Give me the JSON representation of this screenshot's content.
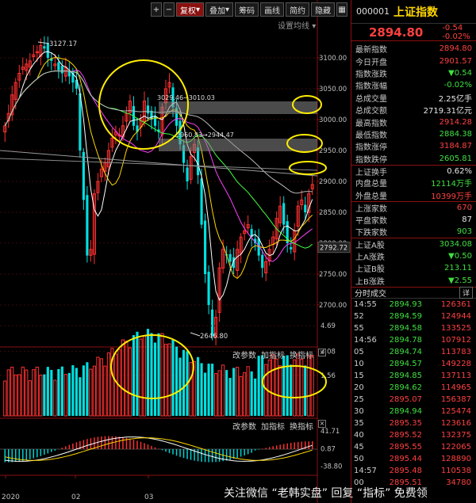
{
  "toolbar": {
    "plus": "+",
    "minus": "−",
    "fq": "复权",
    "overlay": "叠加",
    "chip": "筹码",
    "draw": "画线",
    "brief": "简约",
    "hide": "隐藏",
    "grid_icon": "▦",
    "more": "▾"
  },
  "settings_line": "设置均线",
  "price_axis": [
    "3100.00",
    "3050.00",
    "3000.00",
    "2950.00",
    "2900.00",
    "2850.00",
    "2800.00",
    "2750.00",
    "2700.00"
  ],
  "current_axis_value": "2792.72",
  "annotations": {
    "high": "3127.17",
    "low": "2646.80",
    "l1": "3029.46→3010.03",
    "l2": "2960.83→2944.47"
  },
  "vol_axis": [
    "4.69",
    "3.08",
    "1.56"
  ],
  "macd_axis": [
    "41.71",
    "0.87",
    "-38.80"
  ],
  "x_labels": [
    "2020",
    "02",
    "03"
  ],
  "sub_buttons": {
    "params": "改参数",
    "add": "加指标",
    "switch": "换指标",
    "close": "×"
  },
  "panel": {
    "code": "000001",
    "name": "上证指数",
    "price": "2894.80",
    "change": "-0.54",
    "change_pct": "-0.02%",
    "rows": [
      {
        "label": "最新指数",
        "value": "2894.80",
        "cls": "red"
      },
      {
        "label": "今日开盘",
        "value": "2901.57",
        "cls": "red"
      },
      {
        "label": "指数涨跌",
        "value": "▼0.54",
        "cls": "green"
      },
      {
        "label": "指数涨幅",
        "value": "-0.02%",
        "cls": "green"
      },
      {
        "label": "总成交量",
        "value": "2.25亿手",
        "cls": "white"
      },
      {
        "label": "总成交额",
        "value": "2719.31亿元",
        "cls": "white"
      },
      {
        "label": "最高指数",
        "value": "2914.28",
        "cls": "red"
      },
      {
        "label": "最低指数",
        "value": "2884.38",
        "cls": "green"
      },
      {
        "label": "指数涨停",
        "value": "3184.87",
        "cls": "red"
      },
      {
        "label": "指数跌停",
        "value": "2605.81",
        "cls": "green"
      },
      {
        "label": "上证换手",
        "value": "0.62%",
        "cls": "white",
        "sep": true
      },
      {
        "label": "内盘总量",
        "value": "12114万手",
        "cls": "green"
      },
      {
        "label": "外盘总量",
        "value": "10399万手",
        "cls": "red"
      },
      {
        "label": "上涨家数",
        "value": "670",
        "cls": "red",
        "sep": true
      },
      {
        "label": "平盘家数",
        "value": "87",
        "cls": "white"
      },
      {
        "label": "下跌家数",
        "value": "903",
        "cls": "green"
      },
      {
        "label": "上证A股",
        "value": "3034.08",
        "cls": "green",
        "sep": true
      },
      {
        "label": "上A涨跌",
        "value": "▼0.50",
        "cls": "green"
      },
      {
        "label": "上证B股",
        "value": "213.11",
        "cls": "green"
      },
      {
        "label": "上B涨跌",
        "value": "▼2.55",
        "cls": "green"
      }
    ],
    "trades_title": "分时成交",
    "trades_detail": "详",
    "trades": [
      {
        "t": "14:55",
        "p": "2894.93",
        "v": "126361",
        "pc": "green",
        "vc": "red"
      },
      {
        "t": "52",
        "p": "2894.59",
        "v": "124944",
        "pc": "green",
        "vc": "red"
      },
      {
        "t": "55",
        "p": "2894.58",
        "v": "133525",
        "pc": "green",
        "vc": "red"
      },
      {
        "t": "14:56",
        "p": "2894.78",
        "v": "107912",
        "pc": "green",
        "vc": "red"
      },
      {
        "t": "05",
        "p": "2894.74",
        "v": "113783",
        "pc": "green",
        "vc": "red"
      },
      {
        "t": "10",
        "p": "2894.57",
        "v": "149228",
        "pc": "green",
        "vc": "red"
      },
      {
        "t": "15",
        "p": "2894.85",
        "v": "137113",
        "pc": "green",
        "vc": "red"
      },
      {
        "t": "20",
        "p": "2894.62",
        "v": "114965",
        "pc": "green",
        "vc": "red"
      },
      {
        "t": "25",
        "p": "2895.07",
        "v": "156387",
        "pc": "red",
        "vc": "red"
      },
      {
        "t": "30",
        "p": "2894.94",
        "v": "125474",
        "pc": "green",
        "vc": "red"
      },
      {
        "t": "35",
        "p": "2895.35",
        "v": "123616",
        "pc": "red",
        "vc": "red"
      },
      {
        "t": "40",
        "p": "2895.52",
        "v": "132375",
        "pc": "red",
        "vc": "red"
      },
      {
        "t": "45",
        "p": "2895.55",
        "v": "122065",
        "pc": "red",
        "vc": "red"
      },
      {
        "t": "50",
        "p": "2895.44",
        "v": "128890",
        "pc": "red",
        "vc": "red"
      },
      {
        "t": "14:57",
        "p": "2895.48",
        "v": "110538",
        "pc": "red",
        "vc": "red"
      },
      {
        "t": "00",
        "p": "2895.51",
        "v": "34780",
        "pc": "red",
        "vc": "red"
      }
    ]
  },
  "watermark": "关注微信 “老韩实盘” 回复 “指标” 免费领"
}
